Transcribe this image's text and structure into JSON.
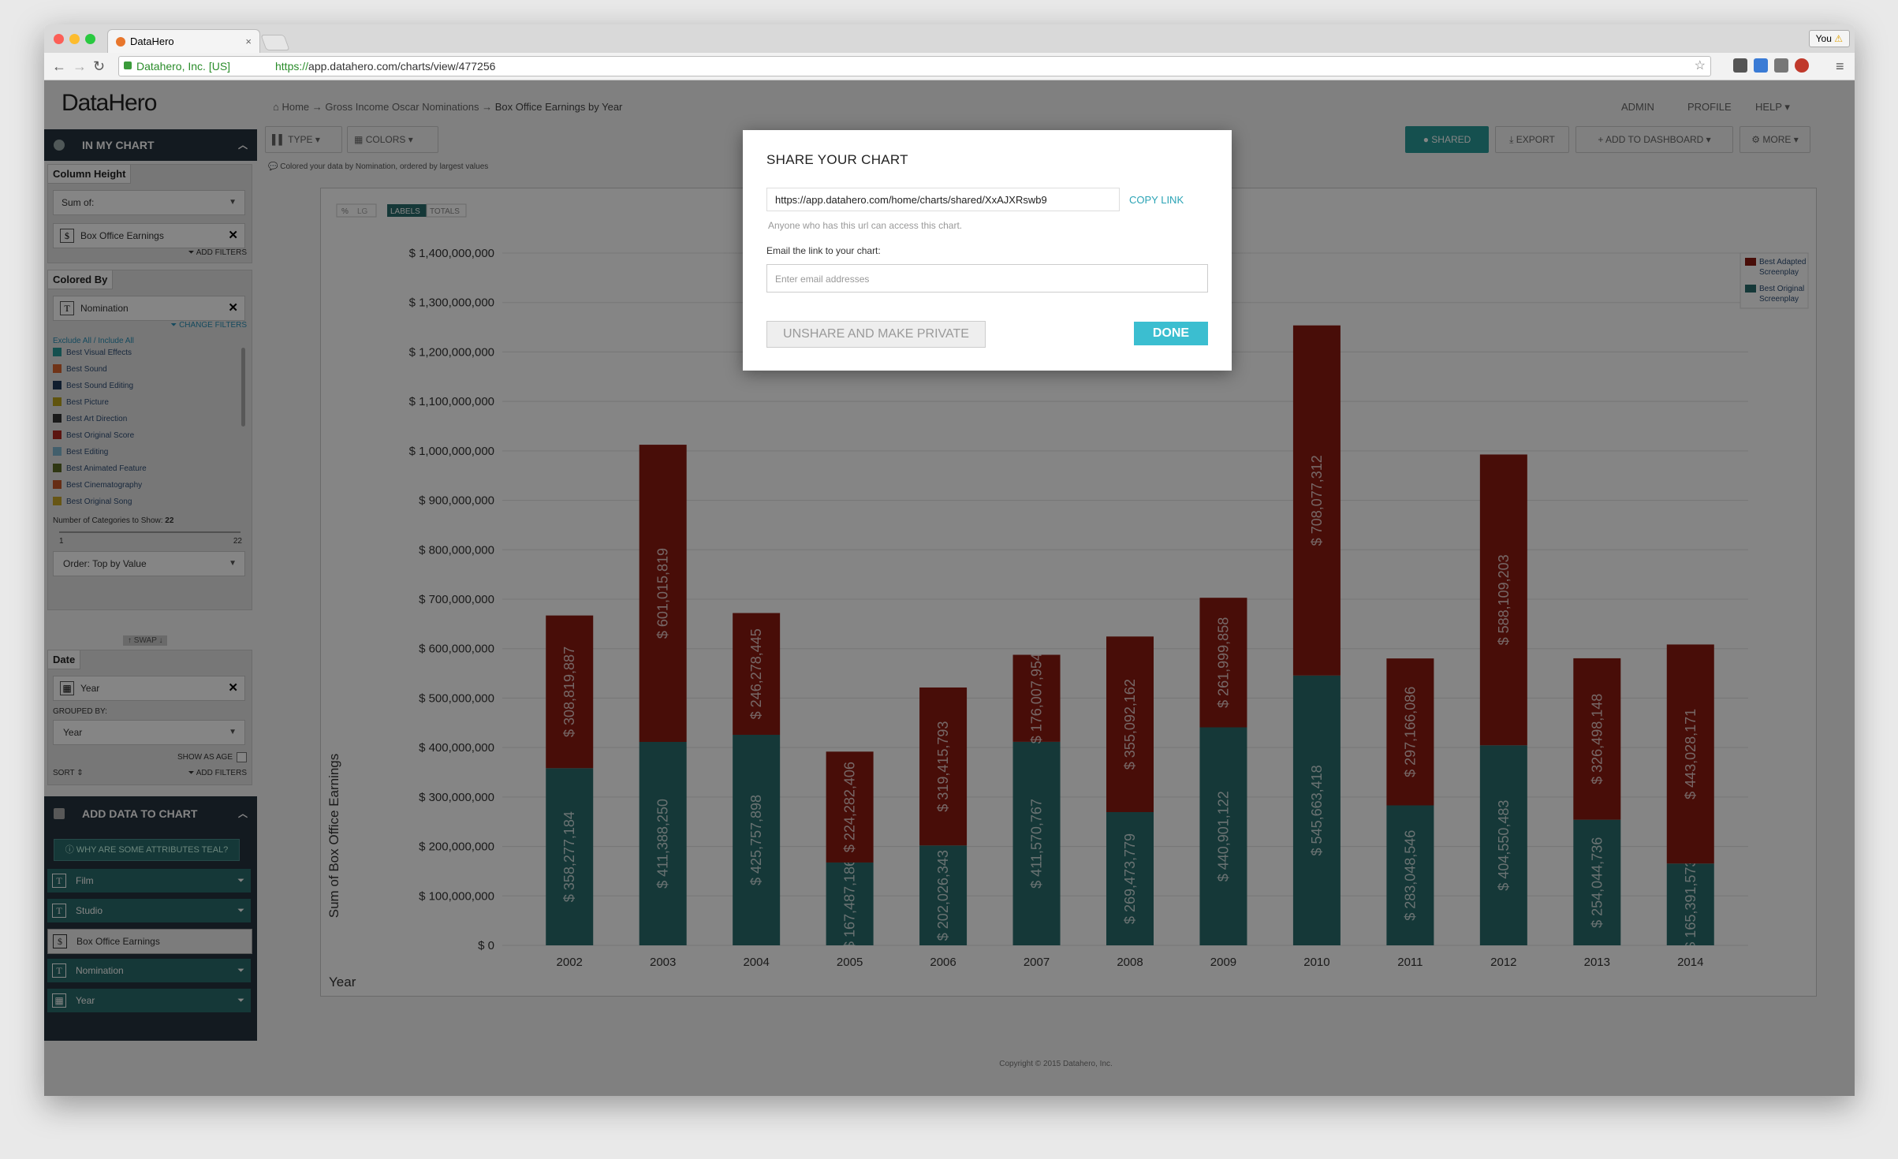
{
  "browser": {
    "tab_title": "DataHero",
    "user_button": "You",
    "url_org": "Datahero, Inc. [US]",
    "url_scheme": "https://",
    "url_rest": "app.datahero.com/charts/view/477256"
  },
  "app": {
    "logo": "DataHero",
    "breadcrumb": {
      "home": "Home",
      "sep": "→",
      "parent": "Gross Income Oscar Nominations",
      "current": "Box Office Earnings by Year"
    },
    "topnav": {
      "admin": "ADMIN",
      "profile": "PROFILE",
      "help": "HELP"
    },
    "toolbar": {
      "type": "TYPE",
      "colors": "COLORS",
      "shared": "SHARED",
      "export": "EXPORT",
      "add_dashboard": "ADD TO DASHBOARD",
      "more": "MORE"
    },
    "hint": "Colored your data by Nomination, ordered by largest values",
    "footer": "Copyright © 2015 Datahero, Inc."
  },
  "sidebar": {
    "in_my_chart": "IN MY CHART",
    "column_height": {
      "tab": "Column Height",
      "agg": "Sum of:",
      "field": "Box Office Earnings",
      "field_icon": "$",
      "add_filters": "ADD FILTERS"
    },
    "colored_by": {
      "tab": "Colored By",
      "field": "Nomination",
      "field_icon": "T",
      "change_filters": "CHANGE FILTERS",
      "exclude_all": "Exclude All",
      "slash": "/",
      "include_all": "Include All",
      "items": [
        {
          "label": "Best Visual Effects",
          "color": "#2a9a97"
        },
        {
          "label": "Best Sound",
          "color": "#d6652e"
        },
        {
          "label": "Best Sound Editing",
          "color": "#1f3a5a"
        },
        {
          "label": "Best Picture",
          "color": "#b9a11b"
        },
        {
          "label": "Best Art Direction",
          "color": "#333333"
        },
        {
          "label": "Best Original Score",
          "color": "#b02a20"
        },
        {
          "label": "Best Editing",
          "color": "#7fb7cf"
        },
        {
          "label": "Best Animated Feature",
          "color": "#5b6a25"
        },
        {
          "label": "Best Cinematography",
          "color": "#c4572a"
        },
        {
          "label": "Best Original Song",
          "color": "#c5a52a"
        }
      ],
      "num_categories_label": "Number of Categories to Show:",
      "num_categories_value": "22",
      "slider_min": "1",
      "slider_max": "22",
      "order": "Order:  Top by Value",
      "swap": "SWAP"
    },
    "date": {
      "tab": "Date",
      "field": "Year",
      "grouped_by_label": "GROUPED BY:",
      "grouped_by": "Year",
      "show_as_age": "SHOW AS AGE",
      "sort": "SORT",
      "add_filters": "ADD FILTERS"
    },
    "add_data": {
      "title": "ADD DATA TO CHART",
      "why_teal": "WHY ARE SOME ATTRIBUTES TEAL?",
      "items": [
        {
          "label": "Film",
          "icon": "T"
        },
        {
          "label": "Studio",
          "icon": "T"
        },
        {
          "label": "Box Office Earnings",
          "icon": "$"
        },
        {
          "label": "Nomination",
          "icon": "T"
        },
        {
          "label": "Year",
          "icon": "cal"
        }
      ]
    }
  },
  "chart_controls": {
    "pct": "%",
    "log": "LG",
    "labels": "LABELS",
    "totals": "TOTALS"
  },
  "chart_data": {
    "type": "bar",
    "stacked": true,
    "categories": [
      "2002",
      "2003",
      "2004",
      "2005",
      "2006",
      "2007",
      "2008",
      "2009",
      "2010",
      "2011",
      "2012",
      "2013",
      "2014"
    ],
    "series": [
      {
        "name": "Best Original Screenplay",
        "color": "#2a6c6b",
        "values": [
          358277184,
          411388250,
          425757898,
          167487186,
          202026343,
          411570767,
          269473779,
          440901122,
          545663418,
          283048546,
          404550483,
          254044736,
          165391573
        ],
        "labels": [
          "$ 358,277,184",
          "$ 411,388,250",
          "$ 425,757,898",
          "$ 167,487,186",
          "$ 202,026,343",
          "$ 411,570,767",
          "$ 269,473,779",
          "$ 440,901,122",
          "$ 545,663,418",
          "$ 283,048,546",
          "$ 404,550,483",
          "$ 254,044,736",
          "$ 165,391,573"
        ]
      },
      {
        "name": "Best Adapted Screenplay",
        "color": "#8b1a10",
        "values": [
          308819887,
          601015819,
          246278445,
          224282406,
          319415793,
          176007954,
          355092162,
          261999858,
          708077312,
          297166086,
          588109203,
          326498148,
          443028171
        ],
        "labels": [
          "$ 308,819,887",
          "$ 601,015,819",
          "$ 246,278,445",
          "$ 224,282,406",
          "$ 319,415,793",
          "$ 176,007,954",
          "$ 355,092,162",
          "$ 261,999,858",
          "$ 708,077,312",
          "$ 297,166,086",
          "$ 588,109,203",
          "$ 326,498,148",
          "$ 443,028,171"
        ]
      }
    ],
    "yticks": [
      "$ 0",
      "$ 100,000,000",
      "$ 200,000,000",
      "$ 300,000,000",
      "$ 400,000,000",
      "$ 500,000,000",
      "$ 600,000,000",
      "$ 700,000,000",
      "$ 800,000,000",
      "$ 900,000,000",
      "$ 1,000,000,000",
      "$ 1,100,000,000",
      "$ 1,200,000,000",
      "$ 1,300,000,000",
      "$ 1,400,000,000"
    ],
    "ylim": [
      0,
      1400000000
    ],
    "ylabel": "Sum of Box Office Earnings",
    "xlabel": "Year",
    "legend": [
      {
        "label": "Best Adapted Screenplay",
        "color": "#8b1a10"
      },
      {
        "label": "Best Original Screenplay",
        "color": "#2a6c6b"
      }
    ],
    "legend_position": "top-right",
    "grid": true
  },
  "modal": {
    "title": "SHARE YOUR CHART",
    "share_url": "https://app.datahero.com/home/charts/shared/XxAJXRswb9",
    "copy_link": "COPY LINK",
    "access_note": "Anyone who has this url can access this chart.",
    "email_label": "Email the link to your chart:",
    "email_placeholder": "Enter email addresses",
    "unshare": "UNSHARE AND MAKE PRIVATE",
    "done": "DONE"
  }
}
